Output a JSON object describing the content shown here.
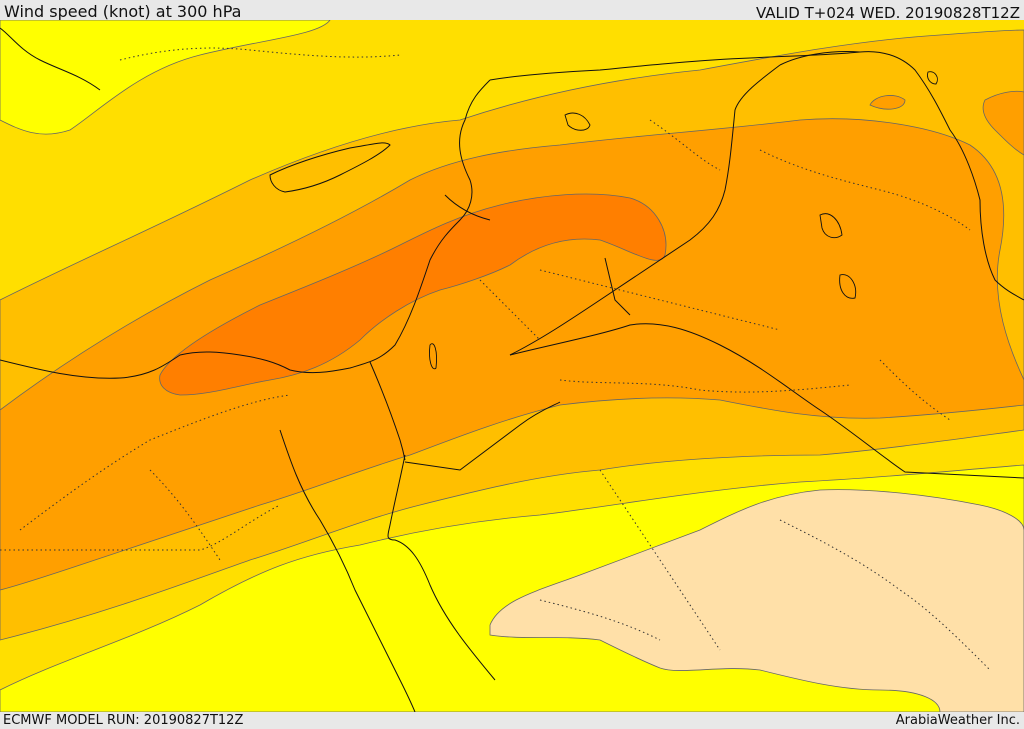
{
  "header": {
    "title": "Wind speed (knot) at 300 hPa",
    "valid": "VALID T+024 WED. 20190828T12Z"
  },
  "footer": {
    "model_run": "ECMWF MODEL RUN: 20190827T12Z",
    "credit": "ArabiaWeather Inc."
  },
  "colors": {
    "band_lowest": "#ffff00",
    "band_low": "#ffdf00",
    "band_mid": "#ffbf00",
    "band_high": "#ff9f00",
    "band_highest": "#ff7f00",
    "calm_area": "#ffe0a8",
    "contour": "#666666",
    "border": "#111111"
  }
}
